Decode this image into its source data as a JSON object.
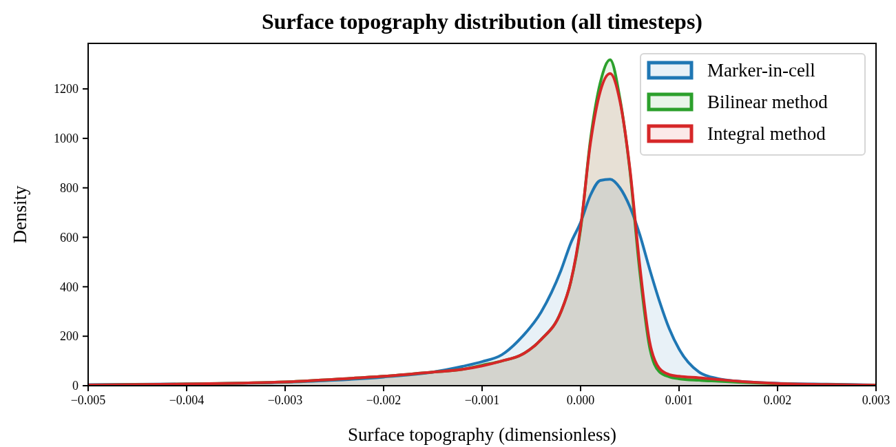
{
  "chart_data": {
    "type": "area",
    "title": "Surface topography distribution (all timesteps)",
    "xlabel": "Surface topography (dimensionless)",
    "ylabel": "Density",
    "x": [
      -0.005,
      -0.004,
      -0.003,
      -0.0025,
      -0.002,
      -0.0015,
      -0.0012,
      -0.001,
      -0.0008,
      -0.0006,
      -0.0004,
      -0.0002,
      -0.0001,
      0,
      0.0001,
      0.0002,
      0.0003,
      0.0004,
      0.0005,
      0.0006,
      0.0007,
      0.0008,
      0.0009,
      0.001,
      0.0012,
      0.0014,
      0.0016,
      0.002,
      0.0025,
      0.003
    ],
    "series": [
      {
        "name": "Marker-in-cell",
        "color": "#1f77b4",
        "values": [
          4,
          7,
          14,
          22,
          35,
          55,
          78,
          97,
          125,
          195,
          298,
          465,
          576,
          660,
          770,
          830,
          835,
          800,
          724,
          612,
          473,
          343,
          231,
          148,
          56,
          28,
          18,
          10,
          6,
          3
        ]
      },
      {
        "name": "Bilinear method",
        "color": "#2ca02c",
        "values": [
          3,
          7,
          15,
          26,
          38,
          55,
          66,
          83,
          100,
          125,
          187,
          298,
          418,
          632,
          994,
          1225,
          1318,
          1160,
          872,
          465,
          158,
          56,
          36,
          28,
          22,
          18,
          14,
          8,
          4,
          2
        ]
      },
      {
        "name": "Integral method",
        "color": "#d62728",
        "values": [
          3,
          7,
          15,
          26,
          38,
          55,
          66,
          80,
          100,
          125,
          187,
          298,
          420,
          640,
          980,
          1190,
          1262,
          1150,
          880,
          490,
          180,
          70,
          45,
          38,
          32,
          25,
          18,
          9,
          5,
          2
        ]
      }
    ],
    "xlim": [
      -0.005,
      0.003
    ],
    "xticks": [
      {
        "value": -0.005,
        "label": "−0.005"
      },
      {
        "value": -0.004,
        "label": "−0.004"
      },
      {
        "value": -0.003,
        "label": "−0.003"
      },
      {
        "value": -0.002,
        "label": "−0.002"
      },
      {
        "value": -0.001,
        "label": "−0.001"
      },
      {
        "value": 0,
        "label": "0.000"
      },
      {
        "value": 0.001,
        "label": "0.001"
      },
      {
        "value": 0.002,
        "label": "0.002"
      },
      {
        "value": 0.003,
        "label": "0.003"
      }
    ],
    "ylim": [
      0,
      1384
    ],
    "yticks": [
      0,
      200,
      400,
      600,
      800,
      1000,
      1200
    ],
    "legend": "top right",
    "line_style": "solid"
  }
}
